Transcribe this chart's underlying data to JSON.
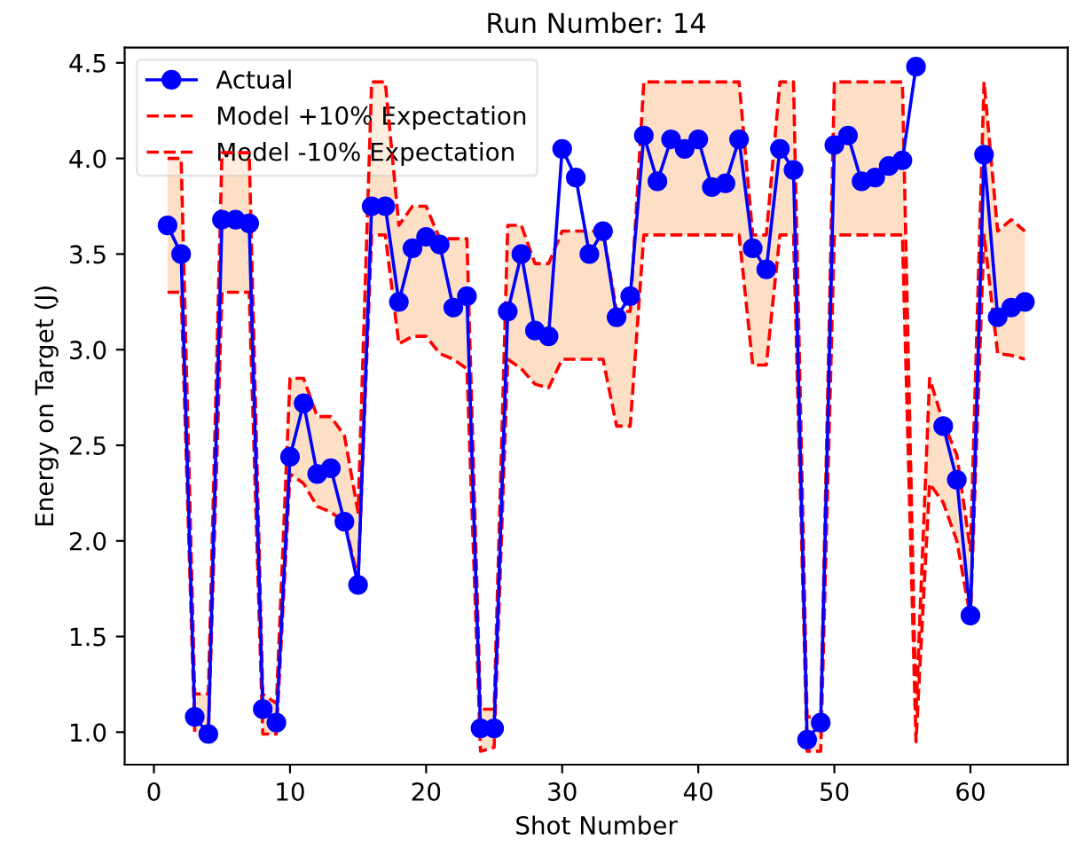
{
  "chart_data": {
    "type": "line",
    "title": "Run Number: 14",
    "xlabel": "Shot Number",
    "ylabel": "Energy on Target (J)",
    "x": [
      1,
      2,
      3,
      4,
      5,
      6,
      7,
      8,
      9,
      10,
      11,
      12,
      13,
      14,
      15,
      16,
      17,
      18,
      19,
      20,
      21,
      22,
      23,
      24,
      25,
      26,
      27,
      28,
      29,
      30,
      31,
      32,
      33,
      34,
      35,
      36,
      37,
      38,
      39,
      40,
      41,
      42,
      43,
      44,
      45,
      46,
      47,
      48,
      49,
      50,
      51,
      52,
      53,
      54,
      55,
      56,
      57,
      58,
      59,
      60,
      61,
      62,
      63,
      64
    ],
    "series": [
      {
        "name": "Actual",
        "color": "#0000ff",
        "marker": "circle",
        "line_style": "solid",
        "upper": [
          4.0,
          4.0,
          1.2,
          1.2,
          4.03,
          4.03,
          4.03,
          1.2,
          1.15,
          2.85,
          2.85,
          2.65,
          2.65,
          2.55,
          2.15,
          4.4,
          4.4,
          3.65,
          3.75,
          3.75,
          3.58,
          3.58,
          3.58,
          1.12,
          1.12,
          3.65,
          3.65,
          3.45,
          3.45,
          3.62,
          3.62,
          3.62,
          3.62,
          3.2,
          3.2,
          4.4,
          4.4,
          4.4,
          4.4,
          4.4,
          4.4,
          4.4,
          4.4,
          3.6,
          3.6,
          4.4,
          4.4,
          1.08,
          1.08,
          4.4,
          4.4,
          4.4,
          4.4,
          4.4,
          4.4,
          1.1,
          2.85,
          2.62,
          2.45,
          1.95,
          4.4,
          3.62,
          3.68,
          3.62
        ],
        "lower": [
          3.3,
          3.3,
          1.0,
          0.98,
          3.3,
          3.3,
          3.3,
          0.99,
          0.99,
          2.35,
          2.3,
          2.18,
          2.15,
          2.1,
          1.8,
          3.6,
          3.6,
          3.03,
          3.07,
          3.07,
          2.98,
          2.95,
          2.9,
          0.9,
          0.92,
          2.95,
          2.9,
          2.82,
          2.8,
          2.95,
          2.95,
          2.95,
          2.95,
          2.6,
          2.6,
          3.6,
          3.6,
          3.6,
          3.6,
          3.6,
          3.6,
          3.6,
          3.6,
          2.92,
          2.92,
          3.6,
          3.6,
          0.9,
          0.9,
          3.6,
          3.6,
          3.6,
          3.6,
          3.6,
          3.6,
          0.95,
          2.3,
          2.2,
          2.0,
          1.6,
          3.6,
          2.98,
          2.97,
          2.95
        ],
        "values": [
          3.65,
          3.5,
          1.08,
          0.99,
          3.68,
          3.68,
          3.66,
          1.12,
          1.05,
          2.44,
          2.72,
          2.35,
          2.38,
          2.1,
          1.77,
          3.75,
          3.75,
          3.25,
          3.53,
          3.59,
          3.55,
          3.22,
          3.28,
          1.02,
          1.02,
          3.2,
          3.5,
          3.1,
          3.07,
          4.05,
          3.9,
          3.5,
          3.62,
          3.17,
          3.28,
          4.12,
          3.88,
          4.1,
          4.05,
          4.1,
          3.85,
          3.87,
          4.1,
          3.53,
          3.42,
          4.05,
          3.94,
          0.96,
          1.05,
          4.07,
          4.12,
          3.88,
          3.9,
          3.96,
          3.99,
          4.48,
          null,
          2.6,
          2.32,
          1.61,
          4.02,
          3.17,
          3.22,
          3.25
        ]
      },
      {
        "name": "Model +10% Expectation",
        "color": "#ff0000",
        "marker": "none",
        "line_style": "dashed",
        "values": [
          4.0,
          4.0,
          1.2,
          1.2,
          4.03,
          4.03,
          4.03,
          1.2,
          1.15,
          2.85,
          2.85,
          2.65,
          2.65,
          2.55,
          2.15,
          4.4,
          4.4,
          3.65,
          3.75,
          3.75,
          3.58,
          3.58,
          3.58,
          1.12,
          1.12,
          3.65,
          3.65,
          3.45,
          3.45,
          3.62,
          3.62,
          3.62,
          3.62,
          3.2,
          3.2,
          4.4,
          4.4,
          4.4,
          4.4,
          4.4,
          4.4,
          4.4,
          4.4,
          3.6,
          3.6,
          4.4,
          4.4,
          1.08,
          1.08,
          4.4,
          4.4,
          4.4,
          4.4,
          4.4,
          4.4,
          1.1,
          2.85,
          2.62,
          2.45,
          1.95,
          4.4,
          3.62,
          3.68,
          3.62
        ]
      },
      {
        "name": "Model -10% Expectation",
        "color": "#ff0000",
        "marker": "none",
        "line_style": "dashed",
        "values": [
          3.3,
          3.3,
          1.0,
          0.98,
          3.3,
          3.3,
          3.3,
          0.99,
          0.99,
          2.35,
          2.3,
          2.18,
          2.15,
          2.1,
          1.8,
          3.6,
          3.6,
          3.03,
          3.07,
          3.07,
          2.98,
          2.95,
          2.9,
          0.9,
          0.92,
          2.95,
          2.9,
          2.82,
          2.8,
          2.95,
          2.95,
          2.95,
          2.95,
          2.6,
          2.6,
          3.6,
          3.6,
          3.6,
          3.6,
          3.6,
          3.6,
          3.6,
          3.6,
          2.92,
          2.92,
          3.6,
          3.6,
          0.9,
          0.9,
          3.6,
          3.6,
          3.6,
          3.6,
          3.6,
          3.6,
          0.95,
          2.3,
          2.2,
          2.0,
          1.6,
          3.6,
          2.98,
          2.97,
          2.95
        ]
      }
    ],
    "xlim": [
      -2.15,
      67.15
    ],
    "xticks": [
      0,
      10,
      20,
      30,
      40,
      50,
      60
    ],
    "ylim": [
      0.83,
      4.58
    ],
    "yticks": [
      {
        "value": 1.0,
        "label": "1.0"
      },
      {
        "value": 1.5,
        "label": "1.5"
      },
      {
        "value": 2.0,
        "label": "2.0"
      },
      {
        "value": 2.5,
        "label": "2.5"
      },
      {
        "value": 3.0,
        "label": "3.0"
      },
      {
        "value": 3.5,
        "label": "3.5"
      },
      {
        "value": 4.0,
        "label": "4.0"
      },
      {
        "value": 4.5,
        "label": "4.5"
      }
    ],
    "grid": false,
    "legend": "top left"
  }
}
